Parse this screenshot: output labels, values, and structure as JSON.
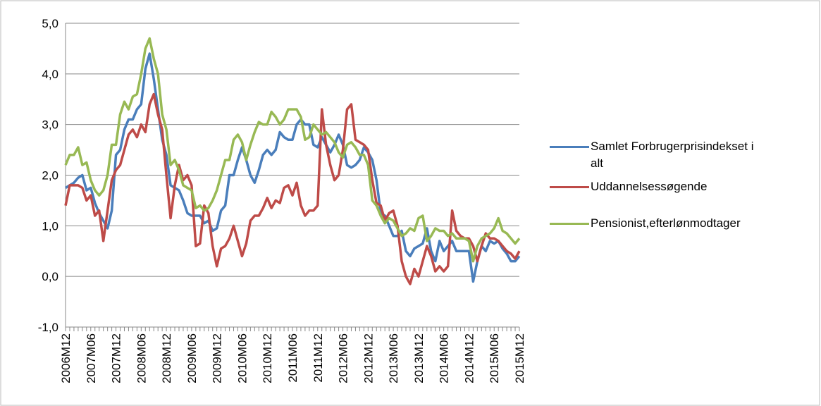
{
  "chart_data": {
    "type": "line",
    "categories": [
      "2006M12",
      null,
      null,
      null,
      null,
      null,
      "2007M06",
      null,
      null,
      null,
      null,
      null,
      "2007M12",
      null,
      null,
      null,
      null,
      null,
      "2008M06",
      null,
      null,
      null,
      null,
      null,
      "2008M12",
      null,
      null,
      null,
      null,
      null,
      "2009M06",
      null,
      null,
      null,
      null,
      null,
      "2009M12",
      null,
      null,
      null,
      null,
      null,
      "2010M06",
      null,
      null,
      null,
      null,
      null,
      "2010M12",
      null,
      null,
      null,
      null,
      null,
      "2011M06",
      null,
      null,
      null,
      null,
      null,
      "2011M12",
      null,
      null,
      null,
      null,
      null,
      "2012M06",
      null,
      null,
      null,
      null,
      null,
      "2012M12",
      null,
      null,
      null,
      null,
      null,
      "2013M06",
      null,
      null,
      null,
      null,
      null,
      "2013M12",
      null,
      null,
      null,
      null,
      null,
      "2014M06",
      null,
      null,
      null,
      null,
      null,
      "2014M12",
      null,
      null,
      null,
      null,
      null,
      "2015M06",
      null,
      null,
      null,
      null,
      null,
      "2015M12"
    ],
    "series": [
      {
        "name": "Samlet Forbrugerprisindekset i alt",
        "color": "#4a7ebb",
        "values": [
          1.75,
          1.8,
          1.85,
          1.95,
          2.0,
          1.7,
          1.75,
          1.45,
          1.25,
          1.1,
          0.95,
          1.3,
          2.4,
          2.5,
          2.9,
          3.1,
          3.1,
          3.3,
          3.4,
          4.1,
          4.4,
          3.9,
          3.3,
          2.7,
          2.4,
          1.8,
          1.75,
          1.7,
          1.5,
          1.25,
          1.2,
          1.2,
          1.2,
          1.05,
          1.1,
          0.9,
          0.95,
          1.3,
          1.4,
          2.0,
          2.0,
          2.3,
          2.55,
          2.3,
          2.0,
          1.85,
          2.1,
          2.4,
          2.5,
          2.4,
          2.5,
          2.85,
          2.75,
          2.7,
          2.7,
          3.0,
          3.1,
          3.0,
          3.0,
          2.6,
          2.55,
          2.75,
          2.6,
          2.45,
          2.6,
          2.8,
          2.6,
          2.2,
          2.15,
          2.2,
          2.3,
          2.55,
          2.45,
          2.3,
          1.9,
          1.25,
          1.2,
          1.0,
          0.8,
          0.8,
          0.9,
          0.5,
          0.4,
          0.55,
          0.6,
          0.65,
          0.95,
          0.5,
          0.3,
          0.7,
          0.5,
          0.6,
          0.7,
          0.5,
          0.5,
          0.5,
          0.5,
          -0.1,
          0.3,
          0.6,
          0.5,
          0.7,
          0.65,
          0.7,
          0.55,
          0.45,
          0.3,
          0.3,
          0.4
        ]
      },
      {
        "name": "Uddannelsessøgende",
        "color": "#be4b48",
        "values": [
          1.4,
          1.8,
          1.8,
          1.8,
          1.75,
          1.5,
          1.6,
          1.2,
          1.3,
          0.7,
          1.3,
          1.9,
          2.1,
          2.2,
          2.5,
          2.8,
          2.9,
          2.75,
          3.0,
          2.85,
          3.4,
          3.6,
          3.2,
          2.9,
          2.0,
          1.15,
          1.8,
          2.2,
          1.9,
          2.0,
          1.8,
          0.6,
          0.65,
          1.4,
          1.25,
          0.6,
          0.2,
          0.55,
          0.6,
          0.75,
          1.0,
          0.7,
          0.4,
          0.65,
          1.1,
          1.2,
          1.2,
          1.35,
          1.55,
          1.35,
          1.5,
          1.45,
          1.75,
          1.8,
          1.6,
          1.85,
          1.4,
          1.2,
          1.3,
          1.3,
          1.4,
          3.3,
          2.6,
          2.2,
          1.9,
          2.0,
          2.5,
          3.3,
          3.4,
          2.7,
          2.65,
          2.6,
          2.5,
          1.9,
          1.45,
          1.4,
          1.1,
          1.25,
          1.3,
          1.0,
          0.3,
          0,
          -0.15,
          0.15,
          0.0,
          0.3,
          0.6,
          0.4,
          0.1,
          0.2,
          0.1,
          0.2,
          1.3,
          0.9,
          0.8,
          0.75,
          0.75,
          0.6,
          0.3,
          0.6,
          0.85,
          0.75,
          0.75,
          0.7,
          0.6,
          0.5,
          0.45,
          0.35,
          0.5
        ]
      },
      {
        "name": "Pensionist,efterlønmodtager",
        "color": "#98b954",
        "values": [
          2.2,
          2.4,
          2.4,
          2.55,
          2.2,
          2.25,
          1.9,
          1.7,
          1.6,
          1.7,
          2.0,
          2.6,
          2.6,
          3.2,
          3.45,
          3.3,
          3.55,
          3.6,
          4.0,
          4.5,
          4.7,
          4.3,
          4.0,
          3.2,
          2.9,
          2.2,
          2.3,
          2.1,
          1.8,
          1.75,
          1.7,
          1.35,
          1.4,
          1.3,
          1.35,
          1.5,
          1.7,
          2.0,
          2.3,
          2.3,
          2.7,
          2.8,
          2.65,
          2.3,
          2.6,
          2.85,
          3.05,
          3.0,
          3.0,
          3.25,
          3.15,
          3.0,
          3.1,
          3.3,
          3.3,
          3.3,
          3.15,
          2.7,
          2.75,
          3.0,
          2.9,
          2.8,
          2.85,
          2.75,
          2.65,
          2.45,
          2.35,
          2.6,
          2.65,
          2.55,
          2.4,
          2.4,
          2.2,
          1.5,
          1.4,
          1.2,
          1.05,
          1.15,
          1.1,
          0.95,
          0.8,
          0.85,
          0.95,
          0.9,
          1.15,
          1.2,
          0.7,
          0.8,
          0.95,
          0.9,
          0.9,
          0.8,
          0.85,
          0.75,
          0.75,
          0.75,
          0.7,
          0.3,
          0.6,
          0.75,
          0.8,
          0.85,
          0.95,
          1.15,
          0.9,
          0.85,
          0.75,
          0.65,
          0.75
        ]
      }
    ],
    "ylim": [
      -1,
      5
    ],
    "yticks": [
      {
        "value": -1,
        "label": "-1,0"
      },
      {
        "value": 0,
        "label": "0,0"
      },
      {
        "value": 1,
        "label": "1,0"
      },
      {
        "value": 2,
        "label": "2,0"
      },
      {
        "value": 3,
        "label": "3,0"
      },
      {
        "value": 4,
        "label": "4,0"
      },
      {
        "value": 5,
        "label": "5,0"
      }
    ],
    "grid": true,
    "legend": "right"
  }
}
